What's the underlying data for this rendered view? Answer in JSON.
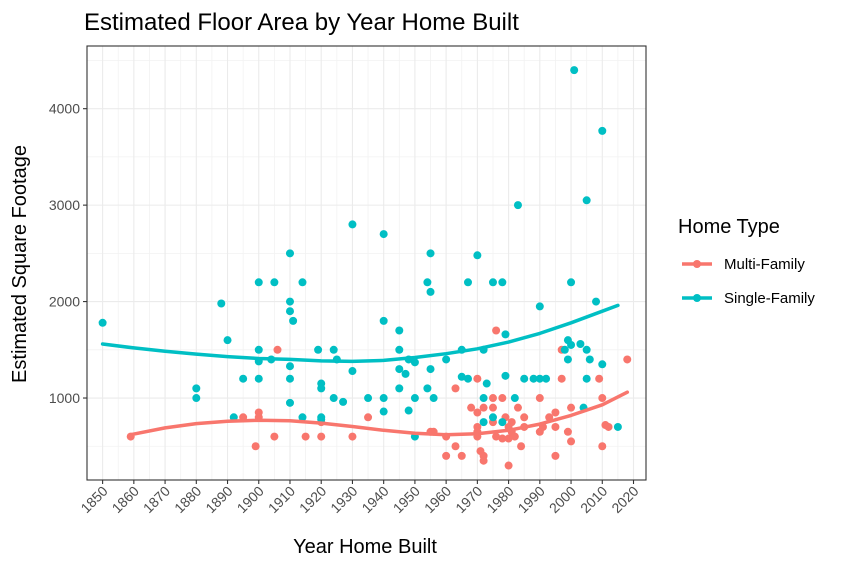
{
  "chart_data": {
    "type": "scatter",
    "title": "Estimated Floor Area by Year Home Built",
    "xlabel": "Year Home Built",
    "ylabel": "Estimated Square Footage",
    "xlim": [
      1845,
      2024
    ],
    "ylim": [
      150,
      4650
    ],
    "x_ticks": [
      "1850",
      "1860",
      "1870",
      "1880",
      "1890",
      "1900",
      "1910",
      "1920",
      "1930",
      "1940",
      "1950",
      "1960",
      "1970",
      "1980",
      "1990",
      "2000",
      "2010",
      "2020"
    ],
    "y_ticks": [
      "1000",
      "2000",
      "3000",
      "4000"
    ],
    "grid": true,
    "legend": {
      "title": "Home Type",
      "position": "right"
    },
    "series": [
      {
        "name": "Multi-Family",
        "color": "#F8766D",
        "points": [
          [
            1859,
            600
          ],
          [
            1895,
            800
          ],
          [
            1899,
            500
          ],
          [
            1900,
            850
          ],
          [
            1900,
            800
          ],
          [
            1905,
            600
          ],
          [
            1906,
            1500
          ],
          [
            1915,
            600
          ],
          [
            1920,
            750
          ],
          [
            1920,
            600
          ],
          [
            1930,
            600
          ],
          [
            1935,
            800
          ],
          [
            1955,
            650
          ],
          [
            1956,
            650
          ],
          [
            1960,
            400
          ],
          [
            1960,
            600
          ],
          [
            1963,
            1100
          ],
          [
            1963,
            500
          ],
          [
            1965,
            400
          ],
          [
            1968,
            900
          ],
          [
            1970,
            1200
          ],
          [
            1970,
            850
          ],
          [
            1970,
            700
          ],
          [
            1970,
            650
          ],
          [
            1970,
            600
          ],
          [
            1971,
            450
          ],
          [
            1972,
            400
          ],
          [
            1972,
            350
          ],
          [
            1972,
            900
          ],
          [
            1975,
            1000
          ],
          [
            1975,
            900
          ],
          [
            1975,
            750
          ],
          [
            1976,
            1700
          ],
          [
            1976,
            600
          ],
          [
            1978,
            1000
          ],
          [
            1978,
            580
          ],
          [
            1979,
            800
          ],
          [
            1980,
            700
          ],
          [
            1980,
            580
          ],
          [
            1980,
            300
          ],
          [
            1981,
            750
          ],
          [
            1981,
            650
          ],
          [
            1982,
            600
          ],
          [
            1983,
            900
          ],
          [
            1984,
            500
          ],
          [
            1985,
            800
          ],
          [
            1985,
            700
          ],
          [
            1990,
            1000
          ],
          [
            1990,
            650
          ],
          [
            1991,
            700
          ],
          [
            1993,
            800
          ],
          [
            1995,
            850
          ],
          [
            1995,
            700
          ],
          [
            1995,
            400
          ],
          [
            1997,
            1500
          ],
          [
            1997,
            1200
          ],
          [
            1999,
            650
          ],
          [
            2000,
            900
          ],
          [
            2000,
            550
          ],
          [
            2009,
            1200
          ],
          [
            2010,
            1000
          ],
          [
            2010,
            500
          ],
          [
            2011,
            720
          ],
          [
            2012,
            700
          ],
          [
            2018,
            1400
          ]
        ],
        "smooth": [
          [
            1859,
            620
          ],
          [
            1870,
            690
          ],
          [
            1880,
            735
          ],
          [
            1890,
            760
          ],
          [
            1900,
            770
          ],
          [
            1910,
            765
          ],
          [
            1920,
            740
          ],
          [
            1930,
            705
          ],
          [
            1940,
            665
          ],
          [
            1950,
            635
          ],
          [
            1960,
            620
          ],
          [
            1970,
            630
          ],
          [
            1980,
            665
          ],
          [
            1990,
            730
          ],
          [
            2000,
            820
          ],
          [
            2010,
            930
          ],
          [
            2018,
            1060
          ]
        ]
      },
      {
        "name": "Single-Family",
        "color": "#00BFC4",
        "points": [
          [
            1850,
            1780
          ],
          [
            1880,
            1100
          ],
          [
            1880,
            1000
          ],
          [
            1888,
            1980
          ],
          [
            1890,
            1600
          ],
          [
            1892,
            800
          ],
          [
            1895,
            1200
          ],
          [
            1900,
            2200
          ],
          [
            1900,
            1500
          ],
          [
            1900,
            1380
          ],
          [
            1900,
            1200
          ],
          [
            1904,
            1400
          ],
          [
            1905,
            2200
          ],
          [
            1910,
            2500
          ],
          [
            1910,
            2000
          ],
          [
            1910,
            1900
          ],
          [
            1910,
            1330
          ],
          [
            1910,
            1200
          ],
          [
            1910,
            950
          ],
          [
            1911,
            1800
          ],
          [
            1914,
            2200
          ],
          [
            1914,
            800
          ],
          [
            1919,
            1500
          ],
          [
            1920,
            1150
          ],
          [
            1920,
            1100
          ],
          [
            1920,
            800
          ],
          [
            1920,
            780
          ],
          [
            1924,
            1000
          ],
          [
            1924,
            1500
          ],
          [
            1925,
            1400
          ],
          [
            1927,
            960
          ],
          [
            1930,
            2800
          ],
          [
            1930,
            1280
          ],
          [
            1935,
            1000
          ],
          [
            1940,
            2700
          ],
          [
            1940,
            1800
          ],
          [
            1940,
            1000
          ],
          [
            1940,
            860
          ],
          [
            1945,
            1700
          ],
          [
            1945,
            1500
          ],
          [
            1945,
            1300
          ],
          [
            1945,
            1100
          ],
          [
            1947,
            1250
          ],
          [
            1948,
            1400
          ],
          [
            1948,
            870
          ],
          [
            1950,
            1370
          ],
          [
            1950,
            1000
          ],
          [
            1950,
            600
          ],
          [
            1954,
            2200
          ],
          [
            1954,
            1100
          ],
          [
            1955,
            2500
          ],
          [
            1955,
            2100
          ],
          [
            1955,
            1300
          ],
          [
            1956,
            1000
          ],
          [
            1960,
            1400
          ],
          [
            1965,
            1500
          ],
          [
            1965,
            1220
          ],
          [
            1967,
            2200
          ],
          [
            1967,
            1200
          ],
          [
            1970,
            2480
          ],
          [
            1972,
            1500
          ],
          [
            1972,
            1000
          ],
          [
            1972,
            750
          ],
          [
            1973,
            1150
          ],
          [
            1975,
            2200
          ],
          [
            1975,
            800
          ],
          [
            1978,
            2200
          ],
          [
            1978,
            750
          ],
          [
            1979,
            1660
          ],
          [
            1979,
            1230
          ],
          [
            1982,
            1000
          ],
          [
            1983,
            3000
          ],
          [
            1985,
            1200
          ],
          [
            1988,
            1200
          ],
          [
            1990,
            1950
          ],
          [
            1990,
            1200
          ],
          [
            1992,
            1200
          ],
          [
            1998,
            1500
          ],
          [
            1999,
            1600
          ],
          [
            1999,
            1400
          ],
          [
            2000,
            2200
          ],
          [
            2000,
            1550
          ],
          [
            2001,
            4400
          ],
          [
            2003,
            1560
          ],
          [
            2004,
            900
          ],
          [
            2005,
            3050
          ],
          [
            2005,
            1500
          ],
          [
            2005,
            1200
          ],
          [
            2006,
            1400
          ],
          [
            2008,
            2000
          ],
          [
            2010,
            3770
          ],
          [
            2010,
            1350
          ],
          [
            2015,
            700
          ]
        ],
        "smooth": [
          [
            1850,
            1560
          ],
          [
            1860,
            1520
          ],
          [
            1870,
            1485
          ],
          [
            1880,
            1455
          ],
          [
            1890,
            1430
          ],
          [
            1900,
            1410
          ],
          [
            1910,
            1400
          ],
          [
            1920,
            1385
          ],
          [
            1930,
            1380
          ],
          [
            1940,
            1390
          ],
          [
            1950,
            1420
          ],
          [
            1960,
            1460
          ],
          [
            1970,
            1510
          ],
          [
            1980,
            1580
          ],
          [
            1990,
            1670
          ],
          [
            2000,
            1780
          ],
          [
            2010,
            1900
          ],
          [
            2015,
            1960
          ]
        ]
      }
    ]
  }
}
